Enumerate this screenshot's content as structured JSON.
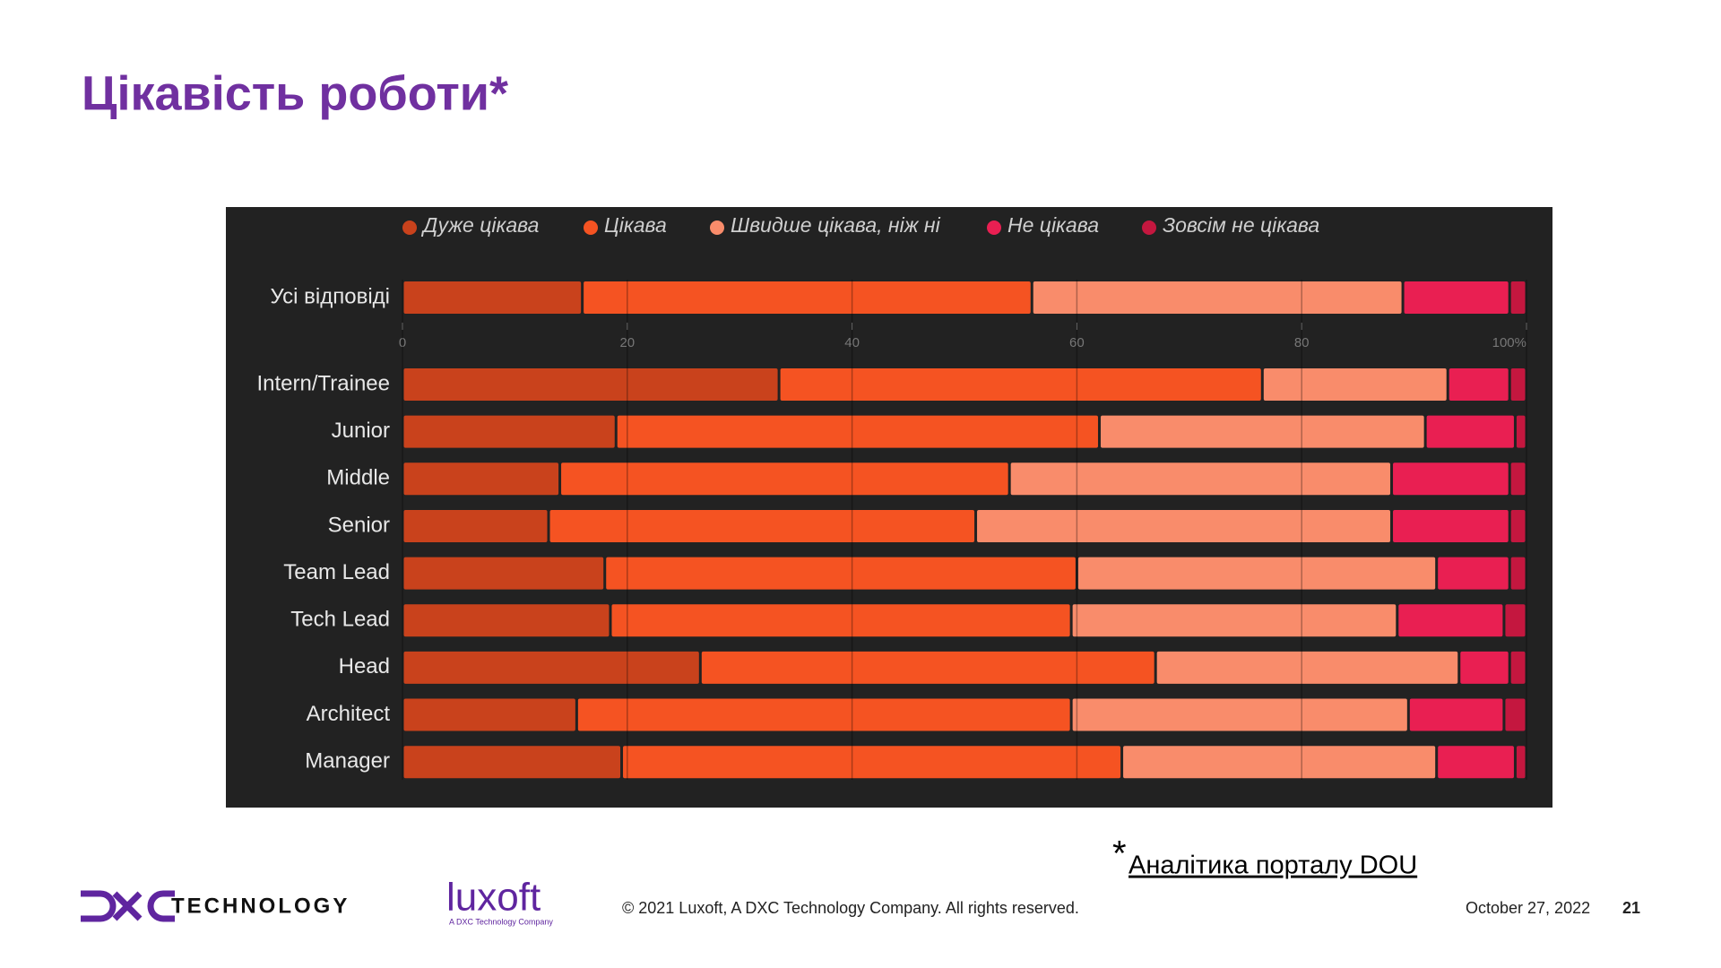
{
  "slide": {
    "title": "Цікавість роботи*",
    "footnote_mark": "*",
    "footnote": "Аналітика порталу DOU",
    "copyright": "© 2021 Luxoft, A DXC Technology Company. All rights reserved.",
    "date": "October 27, 2022",
    "page": "21",
    "logo_dxc": "TECHNOLOGY",
    "logo_luxoft": "luxoft",
    "logo_luxoft_sub": "A DXC Technology Company"
  },
  "chart_data": {
    "type": "bar",
    "orientation": "horizontal",
    "stacked": true,
    "categories": [
      "Усі відповіді",
      "Intern/Trainee",
      "Junior",
      "Middle",
      "Senior",
      "Team Lead",
      "Tech Lead",
      "Head",
      "Architect",
      "Manager"
    ],
    "series": [
      {
        "name": "Дуже цікава",
        "color": "#c9421c",
        "values": [
          16,
          33.5,
          19,
          14,
          13,
          18,
          18.5,
          26.5,
          15.5,
          19.5
        ]
      },
      {
        "name": "Цікава",
        "color": "#f55322",
        "values": [
          40,
          43,
          43,
          40,
          38,
          42,
          41,
          40.5,
          44,
          44.5
        ]
      },
      {
        "name": "Швидше цікава, ніж ні",
        "color": "#f98c6b",
        "values": [
          33,
          16.5,
          29,
          34,
          37,
          32,
          29,
          27,
          30,
          28
        ]
      },
      {
        "name": "Не цікава",
        "color": "#e91f52",
        "values": [
          9.5,
          5.5,
          8,
          10.5,
          10.5,
          6.5,
          9.5,
          4.5,
          8.5,
          7
        ]
      },
      {
        "name": "Зовсім не цікава",
        "color": "#c4173f",
        "values": [
          1.5,
          1.5,
          1,
          1.5,
          1.5,
          1.5,
          2,
          1.5,
          2,
          1
        ]
      }
    ],
    "xlim": [
      0,
      100
    ],
    "xticks": [
      0,
      20,
      40,
      60,
      80,
      {
        "value": 100,
        "label": "100%"
      }
    ],
    "grid": true,
    "legend": "top"
  }
}
